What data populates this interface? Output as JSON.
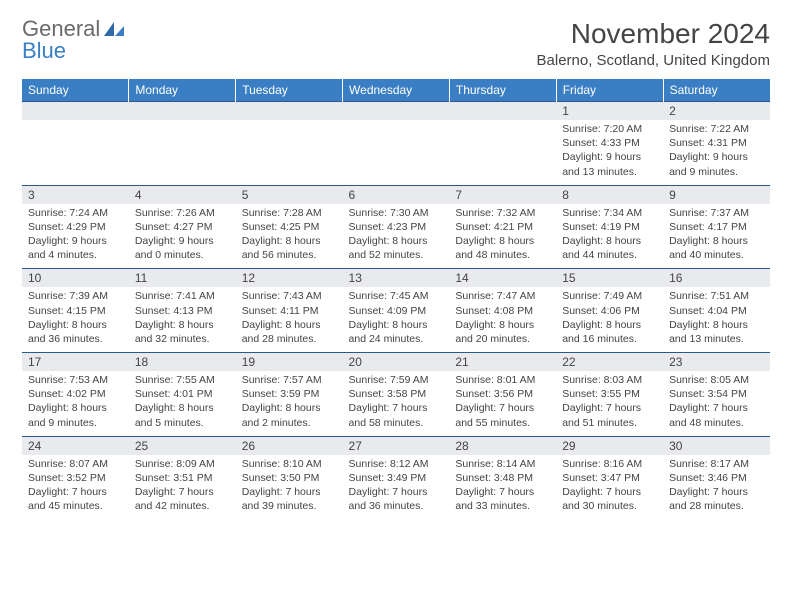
{
  "logo": {
    "general": "General",
    "blue": "Blue"
  },
  "title": "November 2024",
  "location": "Balerno, Scotland, United Kingdom",
  "colors": {
    "header_bg": "#3a7fc4",
    "header_text": "#ffffff",
    "daynum_bg": "#e8eaed",
    "border": "#2a5a8a",
    "text": "#444444",
    "logo_blue": "#3a7fc4",
    "logo_gray": "#6a6a6a"
  },
  "dow": [
    "Sunday",
    "Monday",
    "Tuesday",
    "Wednesday",
    "Thursday",
    "Friday",
    "Saturday"
  ],
  "weeks": [
    [
      null,
      null,
      null,
      null,
      null,
      {
        "n": "1",
        "sr": "Sunrise: 7:20 AM",
        "ss": "Sunset: 4:33 PM",
        "d1": "Daylight: 9 hours",
        "d2": "and 13 minutes."
      },
      {
        "n": "2",
        "sr": "Sunrise: 7:22 AM",
        "ss": "Sunset: 4:31 PM",
        "d1": "Daylight: 9 hours",
        "d2": "and 9 minutes."
      }
    ],
    [
      {
        "n": "3",
        "sr": "Sunrise: 7:24 AM",
        "ss": "Sunset: 4:29 PM",
        "d1": "Daylight: 9 hours",
        "d2": "and 4 minutes."
      },
      {
        "n": "4",
        "sr": "Sunrise: 7:26 AM",
        "ss": "Sunset: 4:27 PM",
        "d1": "Daylight: 9 hours",
        "d2": "and 0 minutes."
      },
      {
        "n": "5",
        "sr": "Sunrise: 7:28 AM",
        "ss": "Sunset: 4:25 PM",
        "d1": "Daylight: 8 hours",
        "d2": "and 56 minutes."
      },
      {
        "n": "6",
        "sr": "Sunrise: 7:30 AM",
        "ss": "Sunset: 4:23 PM",
        "d1": "Daylight: 8 hours",
        "d2": "and 52 minutes."
      },
      {
        "n": "7",
        "sr": "Sunrise: 7:32 AM",
        "ss": "Sunset: 4:21 PM",
        "d1": "Daylight: 8 hours",
        "d2": "and 48 minutes."
      },
      {
        "n": "8",
        "sr": "Sunrise: 7:34 AM",
        "ss": "Sunset: 4:19 PM",
        "d1": "Daylight: 8 hours",
        "d2": "and 44 minutes."
      },
      {
        "n": "9",
        "sr": "Sunrise: 7:37 AM",
        "ss": "Sunset: 4:17 PM",
        "d1": "Daylight: 8 hours",
        "d2": "and 40 minutes."
      }
    ],
    [
      {
        "n": "10",
        "sr": "Sunrise: 7:39 AM",
        "ss": "Sunset: 4:15 PM",
        "d1": "Daylight: 8 hours",
        "d2": "and 36 minutes."
      },
      {
        "n": "11",
        "sr": "Sunrise: 7:41 AM",
        "ss": "Sunset: 4:13 PM",
        "d1": "Daylight: 8 hours",
        "d2": "and 32 minutes."
      },
      {
        "n": "12",
        "sr": "Sunrise: 7:43 AM",
        "ss": "Sunset: 4:11 PM",
        "d1": "Daylight: 8 hours",
        "d2": "and 28 minutes."
      },
      {
        "n": "13",
        "sr": "Sunrise: 7:45 AM",
        "ss": "Sunset: 4:09 PM",
        "d1": "Daylight: 8 hours",
        "d2": "and 24 minutes."
      },
      {
        "n": "14",
        "sr": "Sunrise: 7:47 AM",
        "ss": "Sunset: 4:08 PM",
        "d1": "Daylight: 8 hours",
        "d2": "and 20 minutes."
      },
      {
        "n": "15",
        "sr": "Sunrise: 7:49 AM",
        "ss": "Sunset: 4:06 PM",
        "d1": "Daylight: 8 hours",
        "d2": "and 16 minutes."
      },
      {
        "n": "16",
        "sr": "Sunrise: 7:51 AM",
        "ss": "Sunset: 4:04 PM",
        "d1": "Daylight: 8 hours",
        "d2": "and 13 minutes."
      }
    ],
    [
      {
        "n": "17",
        "sr": "Sunrise: 7:53 AM",
        "ss": "Sunset: 4:02 PM",
        "d1": "Daylight: 8 hours",
        "d2": "and 9 minutes."
      },
      {
        "n": "18",
        "sr": "Sunrise: 7:55 AM",
        "ss": "Sunset: 4:01 PM",
        "d1": "Daylight: 8 hours",
        "d2": "and 5 minutes."
      },
      {
        "n": "19",
        "sr": "Sunrise: 7:57 AM",
        "ss": "Sunset: 3:59 PM",
        "d1": "Daylight: 8 hours",
        "d2": "and 2 minutes."
      },
      {
        "n": "20",
        "sr": "Sunrise: 7:59 AM",
        "ss": "Sunset: 3:58 PM",
        "d1": "Daylight: 7 hours",
        "d2": "and 58 minutes."
      },
      {
        "n": "21",
        "sr": "Sunrise: 8:01 AM",
        "ss": "Sunset: 3:56 PM",
        "d1": "Daylight: 7 hours",
        "d2": "and 55 minutes."
      },
      {
        "n": "22",
        "sr": "Sunrise: 8:03 AM",
        "ss": "Sunset: 3:55 PM",
        "d1": "Daylight: 7 hours",
        "d2": "and 51 minutes."
      },
      {
        "n": "23",
        "sr": "Sunrise: 8:05 AM",
        "ss": "Sunset: 3:54 PM",
        "d1": "Daylight: 7 hours",
        "d2": "and 48 minutes."
      }
    ],
    [
      {
        "n": "24",
        "sr": "Sunrise: 8:07 AM",
        "ss": "Sunset: 3:52 PM",
        "d1": "Daylight: 7 hours",
        "d2": "and 45 minutes."
      },
      {
        "n": "25",
        "sr": "Sunrise: 8:09 AM",
        "ss": "Sunset: 3:51 PM",
        "d1": "Daylight: 7 hours",
        "d2": "and 42 minutes."
      },
      {
        "n": "26",
        "sr": "Sunrise: 8:10 AM",
        "ss": "Sunset: 3:50 PM",
        "d1": "Daylight: 7 hours",
        "d2": "and 39 minutes."
      },
      {
        "n": "27",
        "sr": "Sunrise: 8:12 AM",
        "ss": "Sunset: 3:49 PM",
        "d1": "Daylight: 7 hours",
        "d2": "and 36 minutes."
      },
      {
        "n": "28",
        "sr": "Sunrise: 8:14 AM",
        "ss": "Sunset: 3:48 PM",
        "d1": "Daylight: 7 hours",
        "d2": "and 33 minutes."
      },
      {
        "n": "29",
        "sr": "Sunrise: 8:16 AM",
        "ss": "Sunset: 3:47 PM",
        "d1": "Daylight: 7 hours",
        "d2": "and 30 minutes."
      },
      {
        "n": "30",
        "sr": "Sunrise: 8:17 AM",
        "ss": "Sunset: 3:46 PM",
        "d1": "Daylight: 7 hours",
        "d2": "and 28 minutes."
      }
    ]
  ]
}
